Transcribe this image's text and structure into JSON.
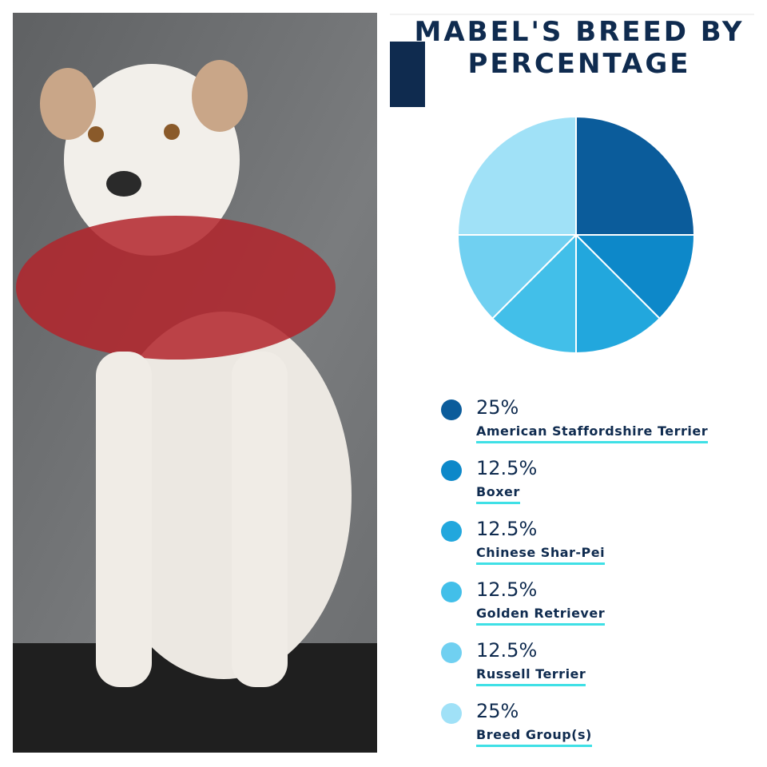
{
  "chart_data": {
    "type": "pie",
    "title": "MABEL'S BREED BY PERCENTAGE",
    "categories": [
      "American Staffordshire Terrier",
      "Boxer",
      "Chinese Shar-Pei",
      "Golden Retriever",
      "Russell Terrier",
      "Breed Group(s)"
    ],
    "values": [
      25,
      12.5,
      12.5,
      12.5,
      12.5,
      25
    ],
    "value_labels": [
      "25%",
      "12.5%",
      "12.5%",
      "12.5%",
      "12.5%",
      "25%"
    ],
    "colors": [
      "#0b5c9b",
      "#0d88c9",
      "#22a7dd",
      "#42bfe9",
      "#70d0f1",
      "#a0e1f7"
    ]
  }
}
